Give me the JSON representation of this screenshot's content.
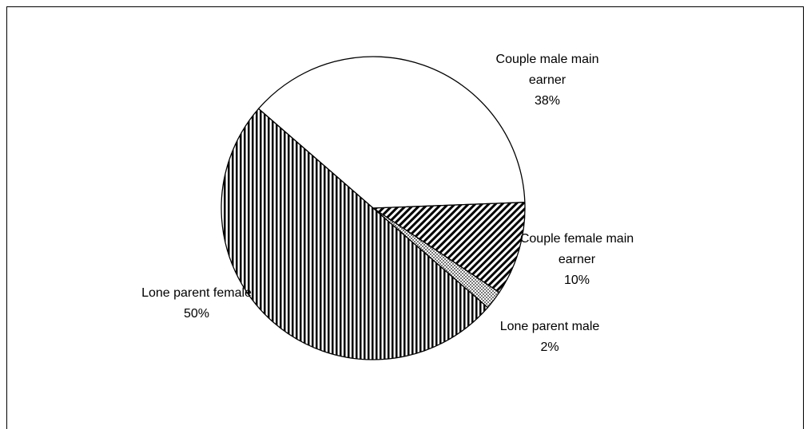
{
  "chart_data": {
    "type": "pie",
    "categories": [
      "Couple male main earner",
      "Couple female main earner",
      "Lone parent male",
      "Lone parent female"
    ],
    "values": [
      38,
      10,
      2,
      50
    ],
    "value_labels": [
      "38%",
      "10%",
      "2%",
      "50%"
    ]
  }
}
